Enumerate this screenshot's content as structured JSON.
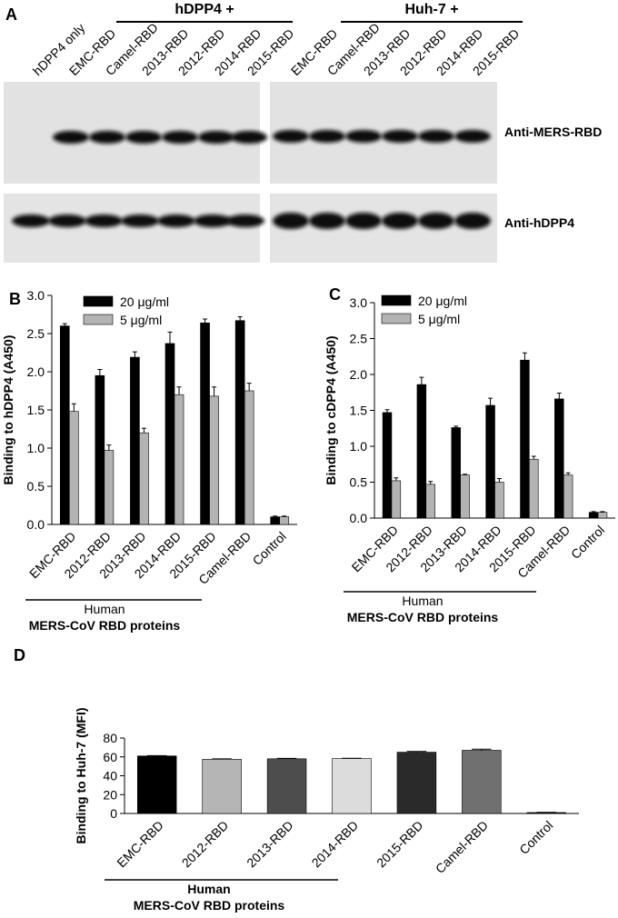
{
  "blot": {
    "panel_label": "A",
    "group_labels": [
      "hDPP4 +",
      "Huh-7 +"
    ],
    "lanes_left": [
      "hDPP4 only",
      "EMC-RBD",
      "Camel-RBD",
      "2013-RBD",
      "2012-RBD",
      "2014-RBD",
      "2015-RBD"
    ],
    "lanes_right": [
      "EMC-RBD",
      "Camel-RBD",
      "2013-RBD",
      "2012-RBD",
      "2014-RBD",
      "2015-RBD"
    ],
    "row_labels": [
      "Anti-MERS-RBD",
      "Anti-hDPP4"
    ]
  },
  "chart_data": [
    {
      "type": "bar",
      "panel_label": "B",
      "y_label": "Binding to hDPP4 (A450)",
      "categories": [
        "EMC-RBD",
        "2012-RBD",
        "2013-RBD",
        "2014-RBD",
        "2015-RBD",
        "Camel-RBD",
        "Control"
      ],
      "series": [
        {
          "name": "20 μg/ml",
          "color": "#000000",
          "values": [
            2.6,
            1.95,
            2.19,
            2.37,
            2.64,
            2.67,
            0.1
          ],
          "errors": [
            0.03,
            0.08,
            0.07,
            0.15,
            0.05,
            0.05,
            0.01
          ]
        },
        {
          "name": "5 μg/ml",
          "color": "#b3b3b3",
          "values": [
            1.48,
            0.97,
            1.2,
            1.7,
            1.68,
            1.75,
            0.1
          ],
          "errors": [
            0.1,
            0.07,
            0.06,
            0.1,
            0.12,
            0.1,
            0.01
          ]
        }
      ],
      "ylim": [
        0,
        3
      ],
      "yticks": [
        {
          "value": 0,
          "label": "0.0"
        },
        0.5,
        {
          "value": 1,
          "label": "1.0"
        },
        1.5,
        {
          "value": 2,
          "label": "2.0"
        },
        2.5,
        {
          "value": 3,
          "label": "3.0"
        }
      ],
      "group_label": "Human",
      "x_label": "MERS-CoV RBD proteins"
    },
    {
      "type": "bar",
      "panel_label": "C",
      "y_label": "Binding to cDPP4 (A450)",
      "categories": [
        "EMC-RBD",
        "2012-RBD",
        "2013-RBD",
        "2014-RBD",
        "2015-RBD",
        "Camel-RBD",
        "Control"
      ],
      "series": [
        {
          "name": "20 μg/ml",
          "color": "#000000",
          "values": [
            1.47,
            1.86,
            1.26,
            1.57,
            2.2,
            1.66,
            0.08
          ],
          "errors": [
            0.04,
            0.1,
            0.02,
            0.1,
            0.1,
            0.08,
            0.01
          ]
        },
        {
          "name": "5 μg/ml",
          "color": "#b3b3b3",
          "values": [
            0.52,
            0.47,
            0.6,
            0.5,
            0.82,
            0.6,
            0.08
          ],
          "errors": [
            0.04,
            0.04,
            0.01,
            0.05,
            0.04,
            0.03,
            0.01
          ]
        }
      ],
      "ylim": [
        0,
        3
      ],
      "yticks": [
        {
          "value": 0,
          "label": "0.0"
        },
        0.5,
        {
          "value": 1,
          "label": "1.0"
        },
        1.5,
        {
          "value": 2,
          "label": "2.0"
        },
        2.5,
        {
          "value": 3,
          "label": "3.0"
        }
      ],
      "group_label": "Human",
      "x_label": "MERS-CoV RBD proteins"
    },
    {
      "type": "bar",
      "panel_label": "D",
      "y_label": "Binding to Huh-7 (MFI)",
      "categories": [
        "EMC-RBD",
        "2012-RBD",
        "2013-RBD",
        "2014-RBD",
        "2015-RBD",
        "Camel-RBD",
        "Control"
      ],
      "values": [
        61,
        57.5,
        58,
        58.3,
        65,
        67,
        1
      ],
      "errors": [
        0.3,
        0.5,
        0.4,
        0.2,
        0.8,
        1.2,
        0.2
      ],
      "colors": [
        "#000000",
        "#b5b5b5",
        "#4d4d4d",
        "#dcdcdc",
        "#2a2a2a",
        "#707070",
        "#000000"
      ],
      "ylim": [
        0,
        80
      ],
      "yticks": [
        0,
        20,
        40,
        60,
        80
      ],
      "group_label": "Human",
      "x_label": "MERS-CoV RBD proteins"
    }
  ]
}
